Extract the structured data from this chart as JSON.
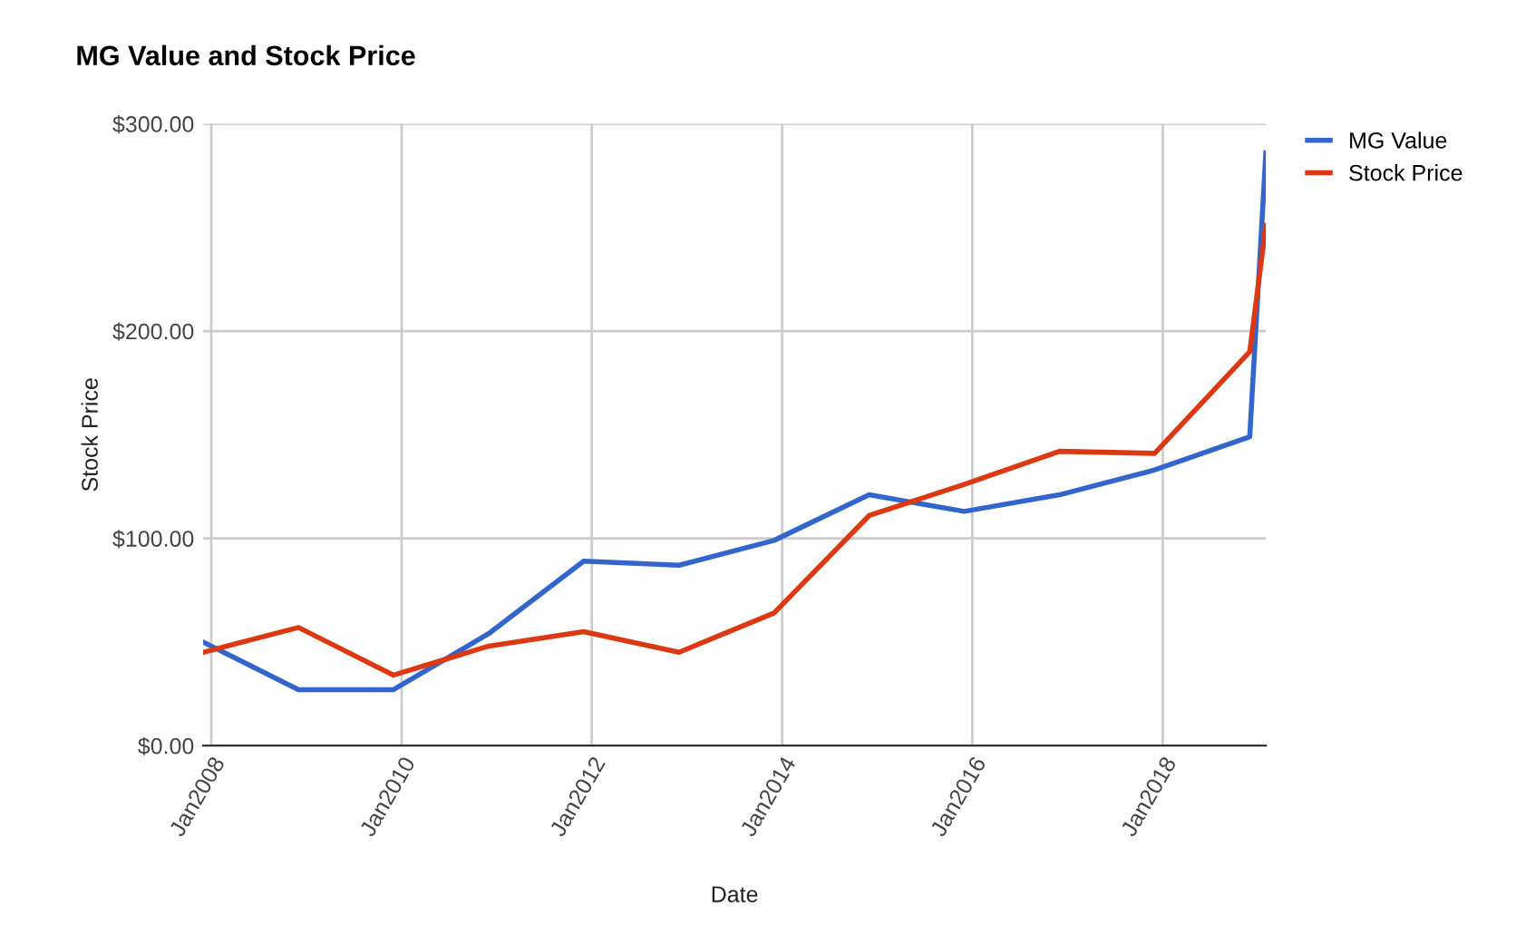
{
  "chart_data": {
    "type": "line",
    "title": "MG Value and Stock Price",
    "xlabel": "Date",
    "ylabel": "Stock Price",
    "x": [
      "2007-12",
      "2008-12",
      "2009-12",
      "2010-12",
      "2011-12",
      "2012-12",
      "2013-12",
      "2014-12",
      "2015-12",
      "2016-12",
      "2017-12",
      "2018-12",
      "2019-02"
    ],
    "series": [
      {
        "name": "MG Value",
        "color": "#3366cc",
        "values": [
          50,
          27,
          27,
          54,
          89,
          87,
          99,
          121,
          113,
          121,
          133,
          149,
          286
        ]
      },
      {
        "name": "Stock Price",
        "color": "#dc3912",
        "values": [
          45,
          57,
          34,
          48,
          55,
          45,
          64,
          111,
          126,
          142,
          141,
          190,
          251
        ]
      }
    ],
    "xlim": [
      "2007-12",
      "2019-02"
    ],
    "xticks": [
      {
        "value": "2008-01",
        "label": "Jan2008"
      },
      {
        "value": "2010-01",
        "label": "Jan2010"
      },
      {
        "value": "2012-01",
        "label": "Jan2012"
      },
      {
        "value": "2014-01",
        "label": "Jan2014"
      },
      {
        "value": "2016-01",
        "label": "Jan2016"
      },
      {
        "value": "2018-01",
        "label": "Jan2018"
      }
    ],
    "ylim": [
      0,
      300
    ],
    "yticks": [
      {
        "value": 0,
        "label": "$0.00"
      },
      {
        "value": 100,
        "label": "$100.00"
      },
      {
        "value": 200,
        "label": "$200.00"
      },
      {
        "value": 300,
        "label": "$300.00"
      }
    ],
    "grid": true,
    "legend": "top right",
    "marker": "none",
    "line_style": "solid"
  }
}
